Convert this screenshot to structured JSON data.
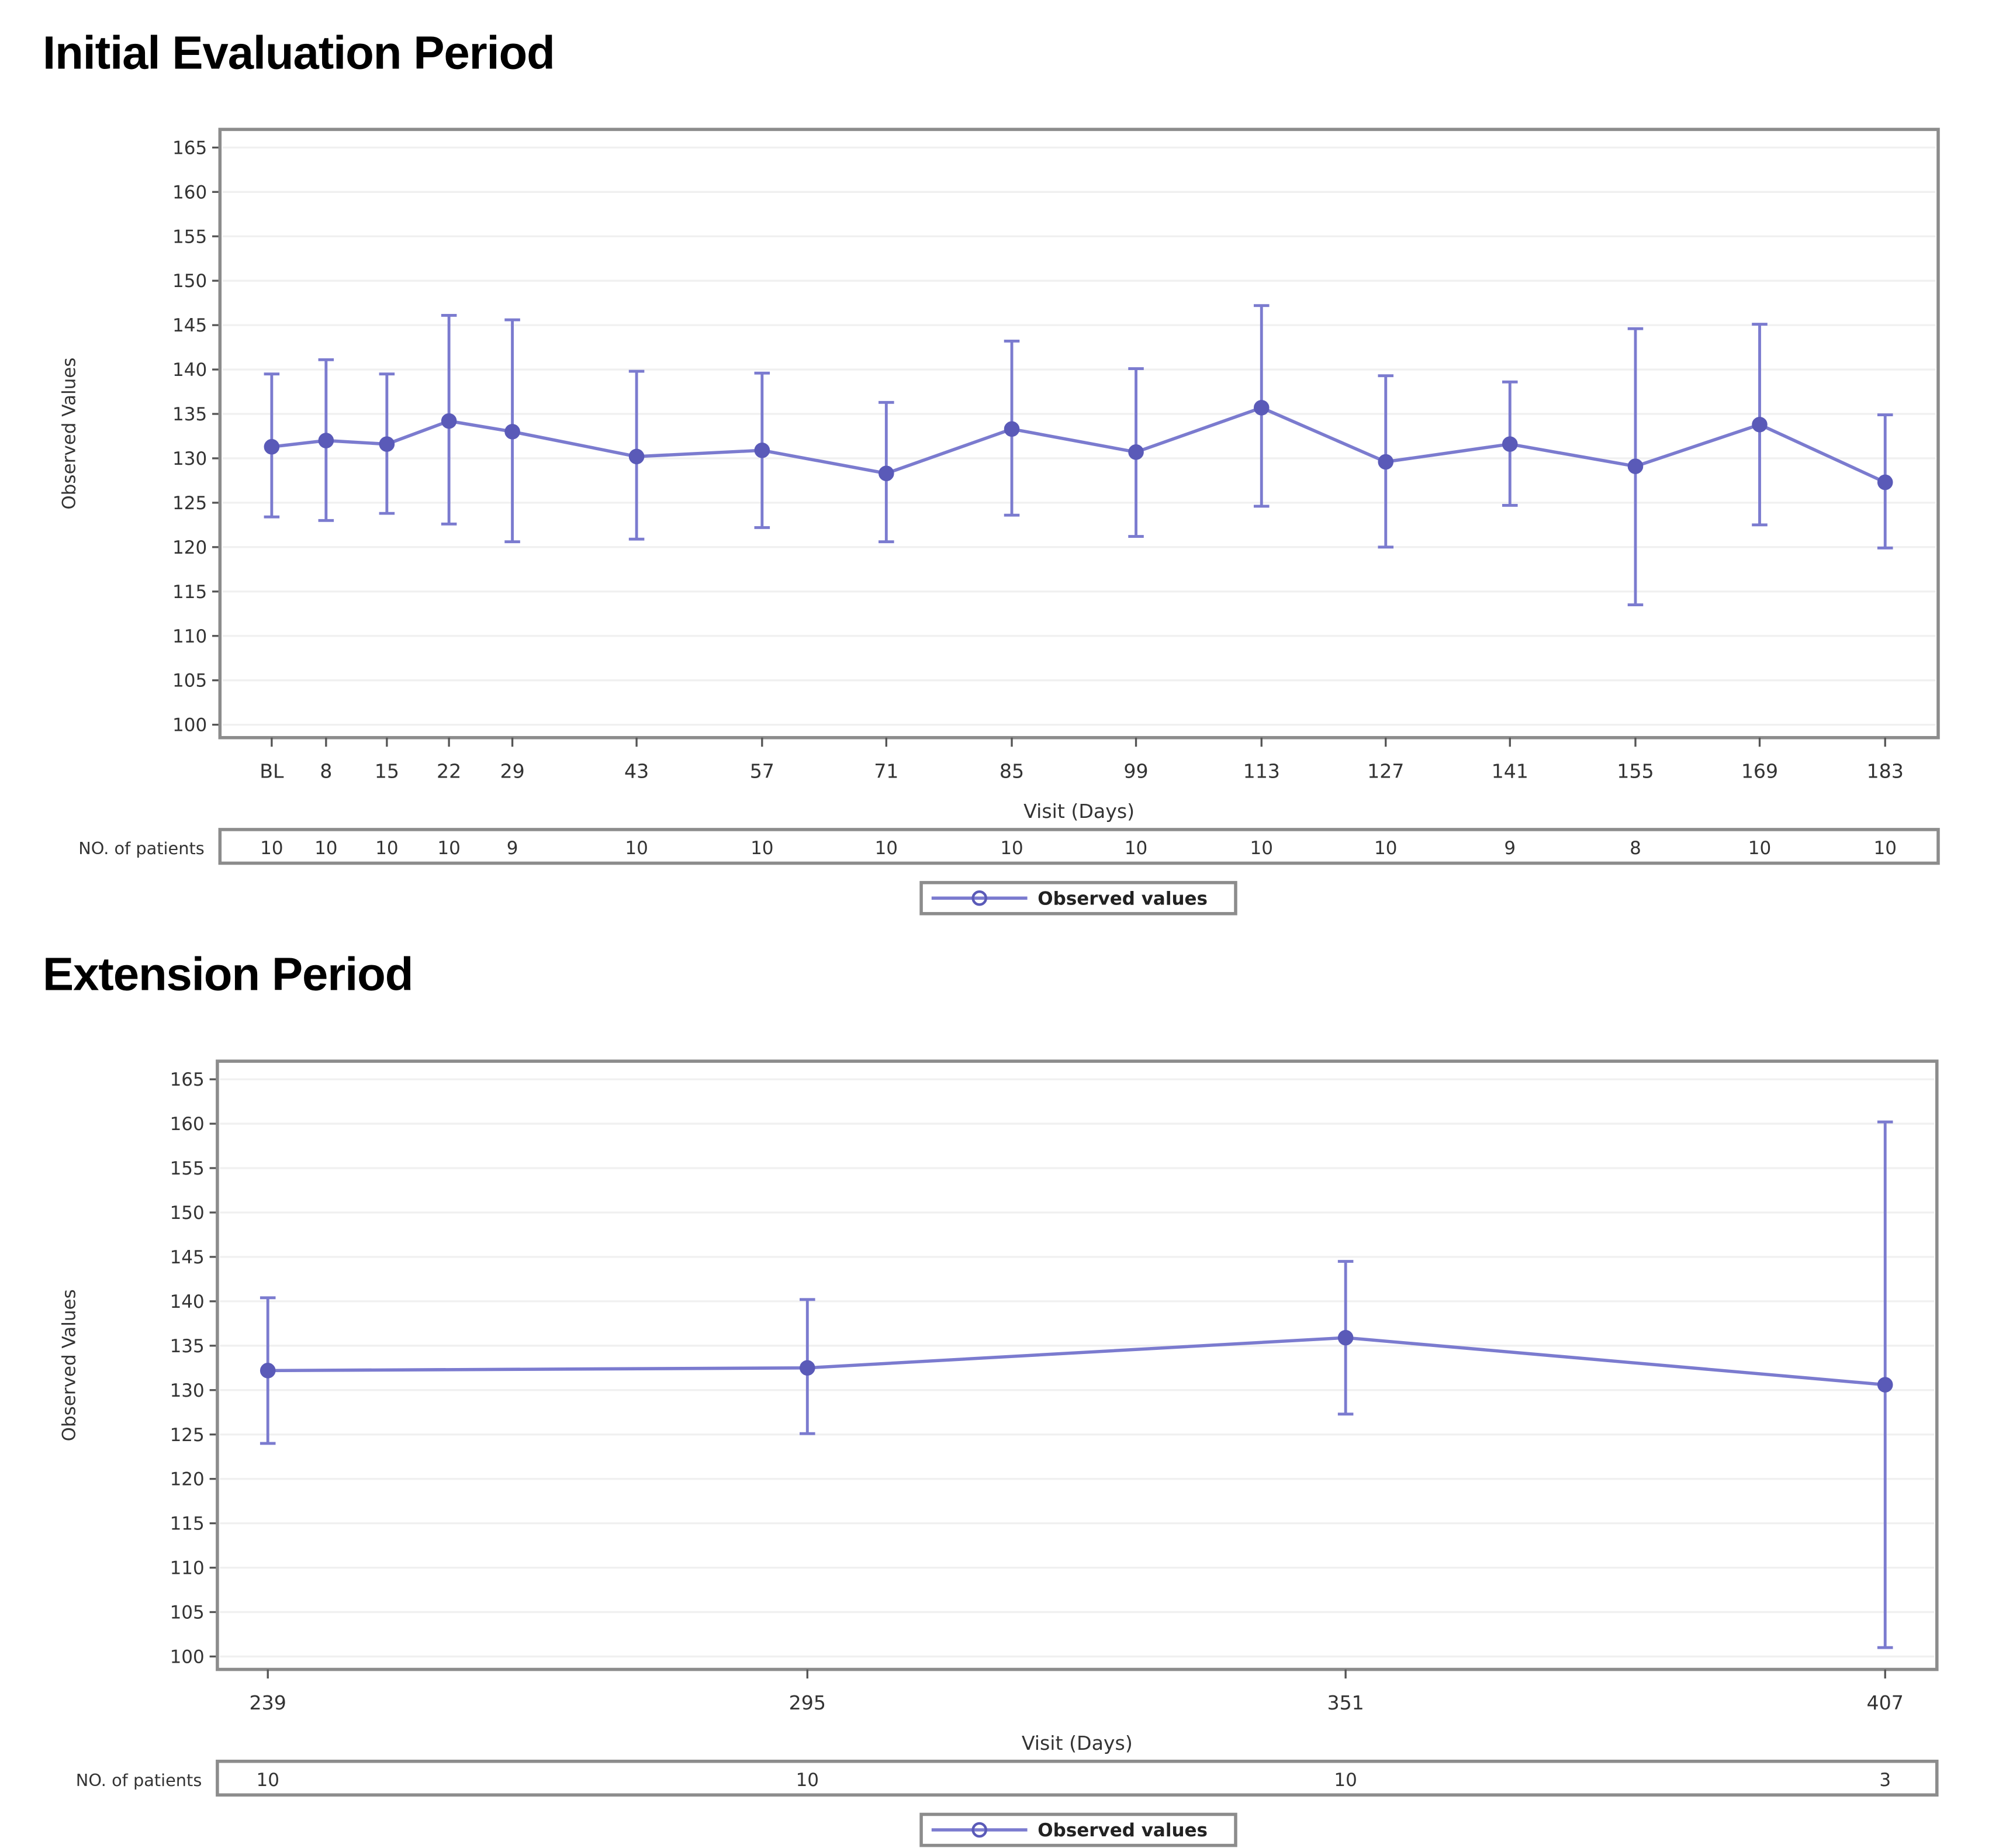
{
  "sections": [
    {
      "title": "Initial Evaluation Period"
    },
    {
      "title": "Extension Period"
    }
  ],
  "colors": {
    "series": "#7b7bcf",
    "marker": "#5a5ab8",
    "frame": "#8c8c8c",
    "gridline": "#f0f0f0",
    "text": "#333333"
  },
  "chart_data": [
    {
      "type": "line",
      "title": "Initial Evaluation Period",
      "xlabel": "Visit (Days)",
      "ylabel": "Observed Values",
      "ylim": [
        100,
        165
      ],
      "yticks": [
        100,
        105,
        110,
        115,
        120,
        125,
        130,
        135,
        140,
        145,
        150,
        155,
        160,
        165
      ],
      "grid": true,
      "legend": {
        "position": "bottom",
        "entries": [
          "Observed values"
        ]
      },
      "categories": [
        "BL",
        "8",
        "15",
        "22",
        "29",
        "43",
        "57",
        "71",
        "85",
        "99",
        "113",
        "127",
        "141",
        "155",
        "169",
        "183"
      ],
      "series": [
        {
          "name": "Observed values",
          "values": [
            131.3,
            132.0,
            131.6,
            134.2,
            133.0,
            130.2,
            130.9,
            128.3,
            133.3,
            130.7,
            135.7,
            129.6,
            131.6,
            129.1,
            133.8,
            127.3
          ],
          "upper": [
            139.5,
            141.1,
            139.5,
            146.1,
            145.6,
            139.8,
            139.6,
            136.3,
            143.2,
            140.1,
            147.2,
            139.3,
            138.6,
            144.6,
            145.1,
            134.9
          ],
          "lower": [
            123.4,
            123.0,
            123.8,
            122.6,
            120.6,
            120.9,
            122.2,
            120.6,
            123.6,
            121.2,
            124.6,
            120.0,
            124.7,
            113.5,
            122.5,
            119.9
          ]
        }
      ],
      "patient_counts_label": "NO. of patients",
      "patient_counts": [
        10,
        10,
        10,
        10,
        9,
        10,
        10,
        10,
        10,
        10,
        10,
        10,
        9,
        8,
        10,
        10
      ]
    },
    {
      "type": "line",
      "title": "Extension Period",
      "xlabel": "Visit (Days)",
      "ylabel": "Observed Values",
      "ylim": [
        100,
        165
      ],
      "yticks": [
        100,
        105,
        110,
        115,
        120,
        125,
        130,
        135,
        140,
        145,
        150,
        155,
        160,
        165
      ],
      "grid": true,
      "legend": {
        "position": "bottom",
        "entries": [
          "Observed values"
        ]
      },
      "categories": [
        "239",
        "295",
        "351",
        "407"
      ],
      "series": [
        {
          "name": "Observed values",
          "values": [
            132.2,
            132.5,
            135.9,
            130.6
          ],
          "upper": [
            140.4,
            140.2,
            144.5,
            160.2
          ],
          "lower": [
            124.0,
            125.1,
            127.3,
            101.0
          ]
        }
      ],
      "patient_counts_label": "NO. of patients",
      "patient_counts": [
        10,
        10,
        10,
        3
      ]
    }
  ]
}
